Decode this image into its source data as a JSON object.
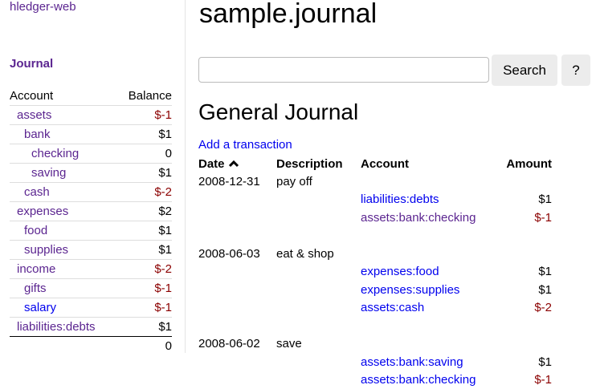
{
  "sidebar": {
    "brand": "hledger-web",
    "journal_link": "Journal",
    "headers": {
      "account": "Account",
      "balance": "Balance"
    },
    "accounts": [
      {
        "name": "assets",
        "balance": "$-1",
        "indent": 1,
        "neg": true,
        "visited": true
      },
      {
        "name": "bank",
        "balance": "$1",
        "indent": 2,
        "neg": false,
        "visited": true
      },
      {
        "name": "checking",
        "balance": "0",
        "indent": 3,
        "neg": false,
        "visited": true
      },
      {
        "name": "saving",
        "balance": "$1",
        "indent": 3,
        "neg": false,
        "visited": true
      },
      {
        "name": "cash",
        "balance": "$-2",
        "indent": 2,
        "neg": true,
        "visited": true
      },
      {
        "name": "expenses",
        "balance": "$2",
        "indent": 1,
        "neg": false,
        "visited": true
      },
      {
        "name": "food",
        "balance": "$1",
        "indent": 2,
        "neg": false,
        "visited": true
      },
      {
        "name": "supplies",
        "balance": "$1",
        "indent": 2,
        "neg": false,
        "visited": true
      },
      {
        "name": "income",
        "balance": "$-2",
        "indent": 1,
        "neg": true,
        "visited": true
      },
      {
        "name": "gifts",
        "balance": "$-1",
        "indent": 2,
        "neg": true,
        "visited": true
      },
      {
        "name": "salary",
        "balance": "$-1",
        "indent": 2,
        "neg": true,
        "visited": false
      },
      {
        "name": "liabilities:debts",
        "balance": "$1",
        "indent": 1,
        "neg": false,
        "visited": true
      }
    ],
    "total": "0"
  },
  "main": {
    "title": "sample.journal",
    "search": {
      "value": "",
      "placeholder": "",
      "button": "Search",
      "help": "?"
    },
    "heading": "General Journal",
    "add_link": "Add a transaction",
    "columns": {
      "date": "Date",
      "sort_icon": "chevron-up-icon",
      "description": "Description",
      "account": "Account",
      "amount": "Amount"
    },
    "transactions": [
      {
        "date": "2008-12-31",
        "description": "pay off",
        "postings": [
          {
            "account": "liabilities:debts",
            "amount": "$1",
            "neg": false,
            "visited": false
          },
          {
            "account": "assets:bank:checking",
            "amount": "$-1",
            "neg": true,
            "visited": true
          }
        ]
      },
      {
        "date": "2008-06-03",
        "description": "eat & shop",
        "postings": [
          {
            "account": "expenses:food",
            "amount": "$1",
            "neg": false,
            "visited": false
          },
          {
            "account": "expenses:supplies",
            "amount": "$1",
            "neg": false,
            "visited": false
          },
          {
            "account": "assets:cash",
            "amount": "$-2",
            "neg": true,
            "visited": false
          }
        ]
      },
      {
        "date": "2008-06-02",
        "description": "save",
        "postings": [
          {
            "account": "assets:bank:saving",
            "amount": "$1",
            "neg": false,
            "visited": false
          },
          {
            "account": "assets:bank:checking",
            "amount": "$-1",
            "neg": true,
            "visited": false
          }
        ]
      }
    ]
  },
  "colors": {
    "visited_link": "#5b2590",
    "link": "#0000ee",
    "negative": "#8b0000"
  }
}
